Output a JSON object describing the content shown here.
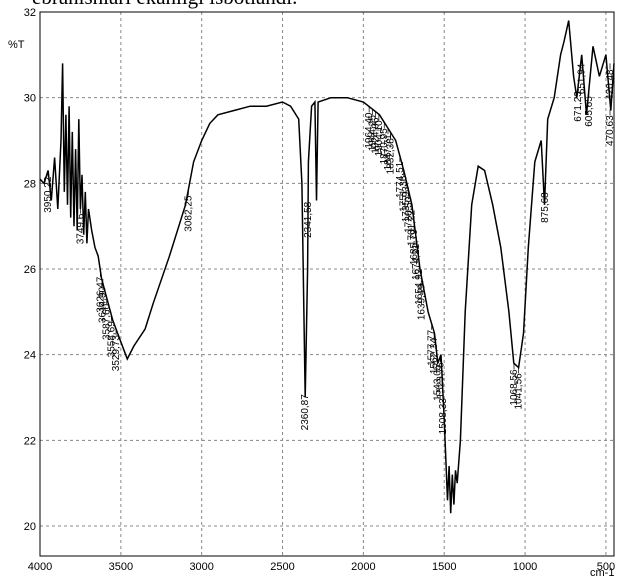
{
  "chart_data": {
    "type": "line",
    "caption": "ebranishlari ekanligi isbotlandi.",
    "y_label": "%T",
    "x_label": "cm-1",
    "xlim": [
      4000,
      450
    ],
    "ylim": [
      19.3,
      32
    ],
    "xticks": [
      4000,
      3500,
      3000,
      2500,
      2000,
      1500,
      1000,
      500
    ],
    "yticks": [
      20,
      22,
      24,
      26,
      28,
      30,
      32
    ],
    "grid": true,
    "color": "#000000",
    "x": [
      4000,
      3975,
      3950,
      3930,
      3910,
      3890,
      3870,
      3860,
      3850,
      3840,
      3830,
      3820,
      3810,
      3800,
      3790,
      3780,
      3770,
      3760,
      3750,
      3740,
      3730,
      3720,
      3710,
      3700,
      3680,
      3660,
      3640,
      3620,
      3600,
      3550,
      3500,
      3460,
      3420,
      3350,
      3300,
      3200,
      3100,
      3050,
      3000,
      2950,
      2900,
      2800,
      2700,
      2600,
      2500,
      2450,
      2400,
      2380,
      2360,
      2345,
      2340,
      2320,
      2300,
      2290,
      2280,
      2200,
      2100,
      2000,
      1900,
      1800,
      1750,
      1700,
      1650,
      1600,
      1560,
      1540,
      1520,
      1500,
      1480,
      1470,
      1460,
      1450,
      1440,
      1430,
      1420,
      1400,
      1370,
      1330,
      1290,
      1250,
      1200,
      1150,
      1100,
      1070,
      1040,
      1010,
      980,
      940,
      900,
      880,
      860,
      820,
      780,
      760,
      730,
      700,
      680,
      650,
      620,
      580,
      540,
      500,
      470,
      450
    ],
    "values": [
      28.1,
      28.0,
      28.3,
      27.6,
      28.6,
      27.4,
      29.0,
      30.8,
      27.8,
      29.6,
      27.5,
      29.8,
      27.2,
      29.2,
      27.0,
      28.8,
      26.9,
      29.5,
      27.4,
      28.2,
      26.8,
      27.8,
      26.6,
      27.4,
      26.9,
      26.5,
      26.3,
      25.8,
      25.5,
      24.8,
      24.3,
      23.9,
      24.2,
      24.6,
      25.2,
      26.3,
      27.5,
      28.5,
      29.0,
      29.4,
      29.6,
      29.7,
      29.8,
      29.8,
      29.9,
      29.8,
      29.5,
      28.0,
      23.0,
      26.0,
      28.5,
      29.8,
      29.9,
      27.6,
      29.9,
      30.0,
      30.0,
      29.9,
      29.6,
      29.0,
      28.3,
      27.5,
      26.0,
      25.0,
      24.5,
      23.8,
      24.0,
      22.5,
      20.6,
      21.4,
      20.3,
      21.2,
      20.5,
      21.3,
      21.0,
      22.0,
      25.0,
      27.5,
      28.4,
      28.3,
      27.5,
      26.5,
      25.0,
      23.8,
      23.7,
      24.5,
      26.5,
      28.5,
      29.0,
      27.5,
      29.5,
      30.0,
      31.0,
      31.3,
      31.8,
      30.5,
      30.0,
      31.0,
      29.6,
      31.2,
      30.5,
      31.0,
      29.7,
      30.8
    ],
    "peaks": [
      {
        "x": 3950.22,
        "label": "3950,22"
      },
      {
        "x": 3749.6,
        "label": "3749,6"
      },
      {
        "x": 3626.47,
        "label": "3626,47"
      },
      {
        "x": 3614.9,
        "label": "3614,90"
      },
      {
        "x": 3587.6,
        "label": "3587,60"
      },
      {
        "x": 3558.69,
        "label": "3558,69"
      },
      {
        "x": 3529.73,
        "label": "3529,73"
      },
      {
        "x": 3082.25,
        "label": "3082,25"
      },
      {
        "x": 2360.87,
        "label": "2360,87"
      },
      {
        "x": 2341.58,
        "label": "2341,58"
      },
      {
        "x": 1964.4,
        "label": "1964,40"
      },
      {
        "x": 1944.25,
        "label": "1944,25"
      },
      {
        "x": 1924.96,
        "label": "1924,96"
      },
      {
        "x": 1904.1,
        "label": "1904,10"
      },
      {
        "x": 1870.95,
        "label": "1870,95"
      },
      {
        "x": 1847.71,
        "label": "1847,71"
      },
      {
        "x": 1832.38,
        "label": "1832,38"
      },
      {
        "x": 1774.51,
        "label": "1774,51"
      },
      {
        "x": 1751.36,
        "label": "1751,36"
      },
      {
        "x": 1735.93,
        "label": "1735,93"
      },
      {
        "x": 1720.5,
        "label": "1720,50"
      },
      {
        "x": 1701.22,
        "label": "1701,22"
      },
      {
        "x": 1685.79,
        "label": "1685,79"
      },
      {
        "x": 1674.21,
        "label": "1674,21"
      },
      {
        "x": 1654.92,
        "label": "1654,92"
      },
      {
        "x": 1639.49,
        "label": "1639,49"
      },
      {
        "x": 1577.77,
        "label": "1577,77"
      },
      {
        "x": 1562.34,
        "label": "1562,34"
      },
      {
        "x": 1543.05,
        "label": "1543,05"
      },
      {
        "x": 1523.76,
        "label": "1523,76"
      },
      {
        "x": 1508.33,
        "label": "1508,33"
      },
      {
        "x": 1068.56,
        "label": "1068,56"
      },
      {
        "x": 1041.56,
        "label": "1041,56"
      },
      {
        "x": 875.68,
        "label": "875,68"
      },
      {
        "x": 671.23,
        "label": "671,23"
      },
      {
        "x": 651.94,
        "label": "651,94"
      },
      {
        "x": 605.65,
        "label": "605,65"
      },
      {
        "x": 470.63,
        "label": "470,63"
      },
      {
        "x": 420.48,
        "label": "420,48"
      }
    ]
  }
}
